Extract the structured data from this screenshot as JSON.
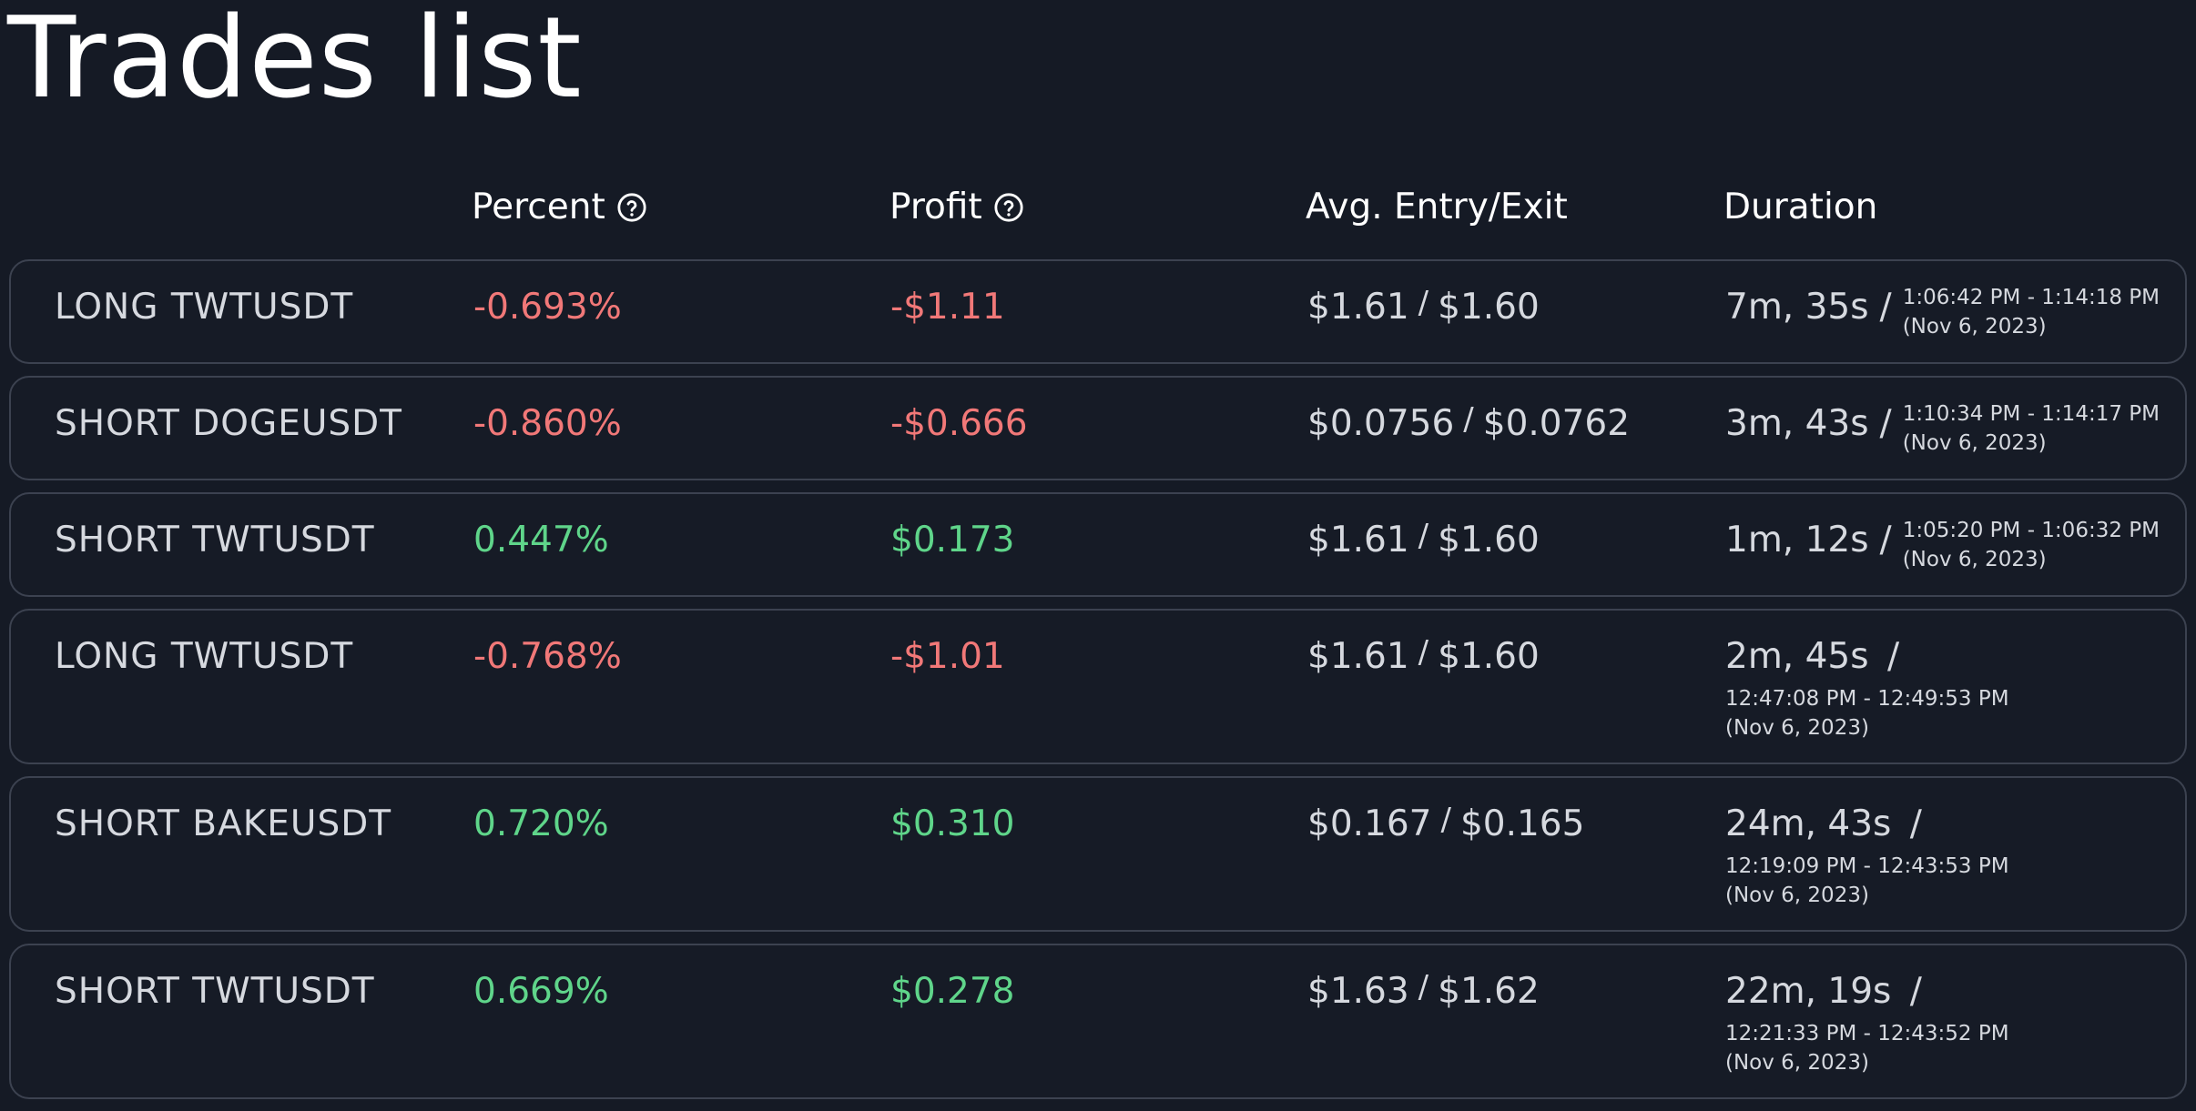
{
  "page": {
    "title": "Trades list"
  },
  "columns": {
    "percent": "Percent",
    "profit": "Profit",
    "entry_exit": "Avg. Entry/Exit",
    "duration": "Duration"
  },
  "icons": {
    "help": "help-circle-icon"
  },
  "colors": {
    "background": "#151a25",
    "negative": "#f17878",
    "positive": "#5fd58a",
    "border": "#3c4250"
  },
  "trades": [
    {
      "name": "LONG TWTUSDT",
      "percent": "-0.693%",
      "profit": "-$1.11",
      "entry": "$1.61",
      "exit": "$1.60",
      "separator": "/",
      "duration": "7m, 35s",
      "duration_sep": "/",
      "time_range": "1:06:42 PM - 1:14:18 PM",
      "date": "(Nov 6, 2023)",
      "outcome": "negative"
    },
    {
      "name": "SHORT DOGEUSDT",
      "percent": "-0.860%",
      "profit": "-$0.666",
      "entry": "$0.0756",
      "exit": "$0.0762",
      "separator": "/",
      "duration": "3m, 43s",
      "duration_sep": "/",
      "time_range": "1:10:34 PM - 1:14:17 PM",
      "date": "(Nov 6, 2023)",
      "outcome": "negative"
    },
    {
      "name": "SHORT TWTUSDT",
      "percent": "0.447%",
      "profit": "$0.173",
      "entry": "$1.61",
      "exit": "$1.60",
      "separator": "/",
      "duration": "1m, 12s",
      "duration_sep": "/",
      "time_range": "1:05:20 PM - 1:06:32 PM",
      "date": "(Nov 6, 2023)",
      "outcome": "positive"
    },
    {
      "name": "LONG TWTUSDT",
      "percent": "-0.768%",
      "profit": "-$1.01",
      "entry": "$1.61",
      "exit": "$1.60",
      "separator": "/",
      "duration": "2m, 45s",
      "duration_sep": "/",
      "time_range": "12:47:08 PM - 12:49:53 PM",
      "date": "(Nov 6, 2023)",
      "outcome": "negative"
    },
    {
      "name": "SHORT BAKEUSDT",
      "percent": "0.720%",
      "profit": "$0.310",
      "entry": "$0.167",
      "exit": "$0.165",
      "separator": "/",
      "duration": "24m, 43s",
      "duration_sep": "/",
      "time_range": "12:19:09 PM - 12:43:53 PM",
      "date": "(Nov 6, 2023)",
      "outcome": "positive"
    },
    {
      "name": "SHORT TWTUSDT",
      "percent": "0.669%",
      "profit": "$0.278",
      "entry": "$1.63",
      "exit": "$1.62",
      "separator": "/",
      "duration": "22m, 19s",
      "duration_sep": "/",
      "time_range": "12:21:33 PM - 12:43:52 PM",
      "date": "(Nov 6, 2023)",
      "outcome": "positive"
    }
  ]
}
